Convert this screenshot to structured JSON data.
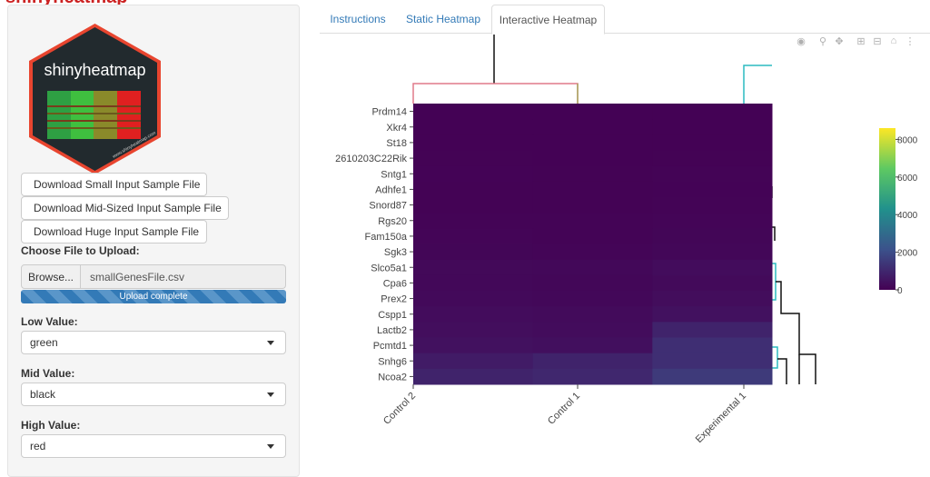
{
  "sidebar": {
    "logo_text": "shinyheatmap",
    "logo_small_text": "www.shinyheatmap.com",
    "downloads": [
      {
        "label": "Download Small Input Sample File"
      },
      {
        "label": "Download Mid-Sized Input Sample File"
      },
      {
        "label": "Download Huge Input Sample File"
      }
    ],
    "upload": {
      "label": "Choose File to Upload:",
      "browse_label": "Browse...",
      "file_name": "smallGenesFile.csv",
      "progress_label": "Upload complete",
      "progress": 1.0
    },
    "low": {
      "label": "Low Value:",
      "value": "green"
    },
    "mid": {
      "label": "Mid Value:",
      "value": "black"
    },
    "high": {
      "label": "High Value:",
      "value": "red"
    }
  },
  "tabs": [
    {
      "label": "Instructions",
      "active": false
    },
    {
      "label": "Static Heatmap",
      "active": false
    },
    {
      "label": "Interactive Heatmap",
      "active": true
    }
  ],
  "modebar": [
    "camera-icon",
    "zoom-icon",
    "pan-icon",
    "zoom-in-icon",
    "zoom-out-icon",
    "reset-axes-icon",
    "hover-compare-icon"
  ],
  "chart_data": {
    "type": "heatmap",
    "rows": [
      "Prdm14",
      "Xkr4",
      "St18",
      "2610203C22Rik",
      "Sntg1",
      "Adhfe1",
      "Snord87",
      "Rgs20",
      "Fam150a",
      "Sgk3",
      "Slco5a1",
      "Cpa6",
      "Prex2",
      "Cspp1",
      "Lactb2",
      "Pcmtd1",
      "Snhg6",
      "Ncoa2"
    ],
    "columns": [
      "Control 2",
      "Control 1",
      "Experimental 1"
    ],
    "values": [
      [
        30,
        20,
        30
      ],
      [
        20,
        20,
        20
      ],
      [
        30,
        20,
        30
      ],
      [
        40,
        30,
        50
      ],
      [
        60,
        50,
        80
      ],
      [
        50,
        40,
        60
      ],
      [
        40,
        40,
        90
      ],
      [
        80,
        70,
        100
      ],
      [
        100,
        90,
        120
      ],
      [
        120,
        110,
        150
      ],
      [
        200,
        180,
        300
      ],
      [
        180,
        150,
        250
      ],
      [
        220,
        190,
        320
      ],
      [
        300,
        260,
        420
      ],
      [
        350,
        300,
        900
      ],
      [
        420,
        380,
        1200
      ],
      [
        700,
        900,
        1200
      ],
      [
        900,
        1000,
        1500
      ]
    ],
    "colorscale": "viridis",
    "colorbar_ticks": [
      0,
      2000,
      4000,
      6000,
      8000
    ],
    "zlim": [
      0,
      8600
    ]
  },
  "colors": {
    "accent": "#337ab7",
    "dendro_red": "#e07a8a",
    "dendro_olive": "#a8a860",
    "dendro_teal": "#2bbcc0"
  }
}
